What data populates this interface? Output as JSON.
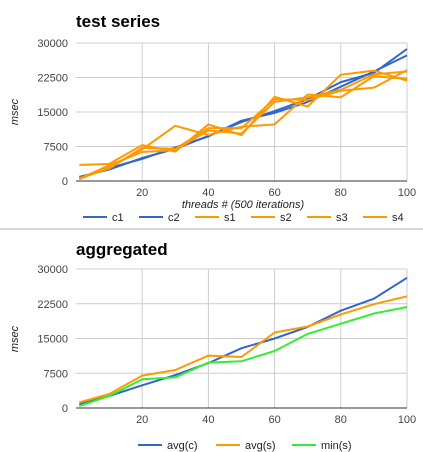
{
  "chart_data": [
    {
      "type": "line",
      "title": "test series",
      "xlabel": "threads # (500 iterations)",
      "ylabel": "msec",
      "xlim": [
        0,
        100
      ],
      "ylim": [
        0,
        30000
      ],
      "x_ticks": [
        "20",
        "40",
        "60",
        "80",
        "100"
      ],
      "y_ticks": [
        "0",
        "7500",
        "15000",
        "22500",
        "30000"
      ],
      "grid": true,
      "legend_position": "bottom",
      "x": [
        1,
        10,
        20,
        30,
        40,
        50,
        60,
        70,
        80,
        90,
        100
      ],
      "series": [
        {
          "name": "c1",
          "color": "#3366cc",
          "values": [
            900,
            2500,
            5000,
            7000,
            9800,
            12800,
            15200,
            17800,
            21500,
            23500,
            28700
          ]
        },
        {
          "name": "c2",
          "color": "#3366cc",
          "values": [
            700,
            2800,
            4800,
            7300,
            9700,
            13100,
            14800,
            17200,
            20500,
            23800,
            27300
          ]
        },
        {
          "name": "s1",
          "color": "#ff9900",
          "values": [
            3500,
            3700,
            7800,
            6400,
            12300,
            10000,
            18300,
            16200,
            23100,
            24000,
            21800
          ]
        },
        {
          "name": "s2",
          "color": "#ff9900",
          "values": [
            400,
            3000,
            6900,
            12000,
            10000,
            11800,
            12300,
            18800,
            18200,
            22800,
            22200
          ]
        },
        {
          "name": "s3",
          "color": "#ff9900",
          "values": [
            600,
            2700,
            7200,
            7000,
            11500,
            11500,
            17800,
            17600,
            19600,
            20300,
            24100
          ]
        },
        {
          "name": "s4",
          "color": "#ff9900",
          "values": [
            500,
            3400,
            6300,
            6700,
            11000,
            10300,
            17200,
            18200,
            19800,
            23200,
            23800
          ]
        }
      ]
    },
    {
      "type": "line",
      "title": "aggregated",
      "xlabel": "",
      "ylabel": "msec",
      "xlim": [
        0,
        100
      ],
      "ylim": [
        0,
        30000
      ],
      "x_ticks": [
        "20",
        "40",
        "60",
        "80",
        "100"
      ],
      "y_ticks": [
        "0",
        "7500",
        "15000",
        "22500",
        "30000"
      ],
      "grid": true,
      "legend_position": "bottom",
      "x": [
        1,
        10,
        20,
        30,
        40,
        50,
        60,
        70,
        80,
        90,
        100
      ],
      "series": [
        {
          "name": "avg(c)",
          "color": "#3366cc",
          "values": [
            800,
            2600,
            4900,
            7100,
            9700,
            12900,
            15000,
            17500,
            21000,
            23600,
            28100
          ]
        },
        {
          "name": "avg(s)",
          "color": "#ff9900",
          "values": [
            1200,
            3000,
            7000,
            8200,
            11300,
            11000,
            16300,
            17600,
            20200,
            22400,
            24100
          ]
        },
        {
          "name": "min(s)",
          "color": "#33ee33",
          "values": [
            400,
            2600,
            6200,
            6600,
            9800,
            10100,
            12300,
            16000,
            18200,
            20400,
            21800
          ]
        }
      ]
    }
  ]
}
